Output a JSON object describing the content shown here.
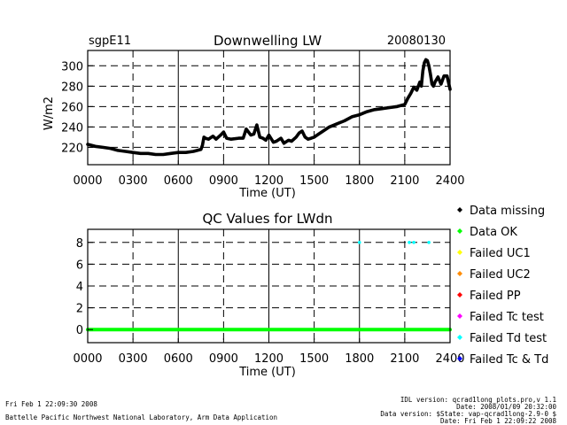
{
  "header": {
    "site": "sgpE11",
    "date": "20080130"
  },
  "colors": {
    "missing": "#000000",
    "ok": "#00ff00",
    "uc1": "#ffff00",
    "uc2": "#ff8c00",
    "pp": "#ff0000",
    "tc": "#ff00ff",
    "td": "#00ffff",
    "tctd": "#0000ff"
  },
  "legend": [
    {
      "key": "missing",
      "label": "Data missing"
    },
    {
      "key": "ok",
      "label": "Data OK"
    },
    {
      "key": "uc1",
      "label": "Failed UC1"
    },
    {
      "key": "uc2",
      "label": "Failed UC2"
    },
    {
      "key": "pp",
      "label": "Failed PP"
    },
    {
      "key": "tc",
      "label": "Failed Tc test"
    },
    {
      "key": "td",
      "label": "Failed Td test"
    },
    {
      "key": "tctd",
      "label": "Failed Tc & Td"
    }
  ],
  "footer": {
    "left_line1": "Fri Feb  1 22:09:30 2008",
    "left_line2": "Battelle Pacific Northwest National Laboratory, Arm Data Application",
    "right_line1": "IDL version: qcrad1long_plots.pro,v 1.1",
    "right_line2": "Date: 2008/01/09 20:32:00",
    "right_line3": "Data version: $State: vap-qcrad1long-2.9-0 $",
    "right_line4": "Date: Fri Feb  1 22:09:22 2008"
  },
  "chart_data": [
    {
      "type": "line",
      "title": "Downwelling LW",
      "xlabel": "Time (UT)",
      "ylabel": "W/m2",
      "xlim": [
        0,
        24
      ],
      "ylim": [
        203,
        315
      ],
      "xticks": [
        0,
        3,
        6,
        9,
        12,
        15,
        18,
        21,
        24
      ],
      "xtick_labels": [
        "0000",
        "0300",
        "0600",
        "0900",
        "1200",
        "1500",
        "1800",
        "2100",
        "2400"
      ],
      "yticks": [
        220,
        240,
        260,
        280,
        300
      ],
      "grid": true,
      "series": [
        {
          "name": "LWdn",
          "x": [
            0.0,
            0.5,
            1.0,
            1.5,
            2.0,
            2.5,
            3.0,
            3.5,
            4.0,
            4.5,
            5.0,
            5.5,
            6.0,
            6.5,
            7.0,
            7.5,
            7.6,
            7.7,
            7.8,
            8.0,
            8.3,
            8.5,
            8.8,
            9.0,
            9.2,
            9.5,
            10.0,
            10.3,
            10.5,
            10.8,
            11.0,
            11.2,
            11.4,
            11.6,
            11.8,
            12.0,
            12.3,
            12.5,
            12.8,
            13.0,
            13.3,
            13.5,
            13.8,
            14.0,
            14.2,
            14.4,
            14.6,
            14.8,
            15.0,
            15.3,
            15.5,
            16.0,
            16.5,
            17.0,
            17.5,
            18.0,
            18.5,
            19.0,
            19.5,
            20.0,
            20.5,
            21.0,
            21.2,
            21.4,
            21.6,
            21.8,
            22.0,
            22.1,
            22.2,
            22.3,
            22.4,
            22.5,
            22.6,
            22.7,
            22.8,
            22.9,
            23.0,
            23.2,
            23.4,
            23.5,
            23.6,
            23.8,
            24.0
          ],
          "y": [
            223,
            221,
            220,
            219,
            217,
            216,
            215,
            214,
            214,
            213,
            213,
            214,
            215,
            215,
            216,
            218,
            222,
            230,
            229,
            228,
            231,
            228,
            232,
            235,
            229,
            228,
            229,
            229,
            238,
            232,
            233,
            242,
            230,
            229,
            227,
            232,
            225,
            226,
            229,
            224,
            227,
            226,
            230,
            234,
            236,
            230,
            228,
            229,
            230,
            233,
            235,
            240,
            243,
            246,
            250,
            252,
            255,
            257,
            258,
            259,
            260,
            262,
            268,
            273,
            279,
            276,
            284,
            280,
            295,
            303,
            306,
            305,
            300,
            292,
            282,
            280,
            284,
            289,
            282,
            286,
            290,
            290,
            277
          ]
        }
      ]
    },
    {
      "type": "scatter",
      "title": "QC Values for LWdn",
      "xlabel": "Time (UT)",
      "ylabel": "",
      "xlim": [
        0,
        24
      ],
      "ylim": [
        -1.2,
        9.2
      ],
      "xticks": [
        0,
        3,
        6,
        9,
        12,
        15,
        18,
        21,
        24
      ],
      "xtick_labels": [
        "0000",
        "0300",
        "0600",
        "0900",
        "1200",
        "1500",
        "1800",
        "2100",
        "2400"
      ],
      "yticks": [
        0,
        2,
        4,
        6,
        8
      ],
      "grid": true,
      "series": [
        {
          "name": "Data OK",
          "key": "ok",
          "style": "line",
          "x": [
            0,
            24
          ],
          "y": [
            0,
            0
          ]
        },
        {
          "name": "Failed Td test",
          "key": "td",
          "style": "points",
          "x": [
            18.0,
            21.3,
            21.6,
            22.6
          ],
          "y": [
            8,
            8,
            8,
            8
          ]
        }
      ]
    }
  ]
}
